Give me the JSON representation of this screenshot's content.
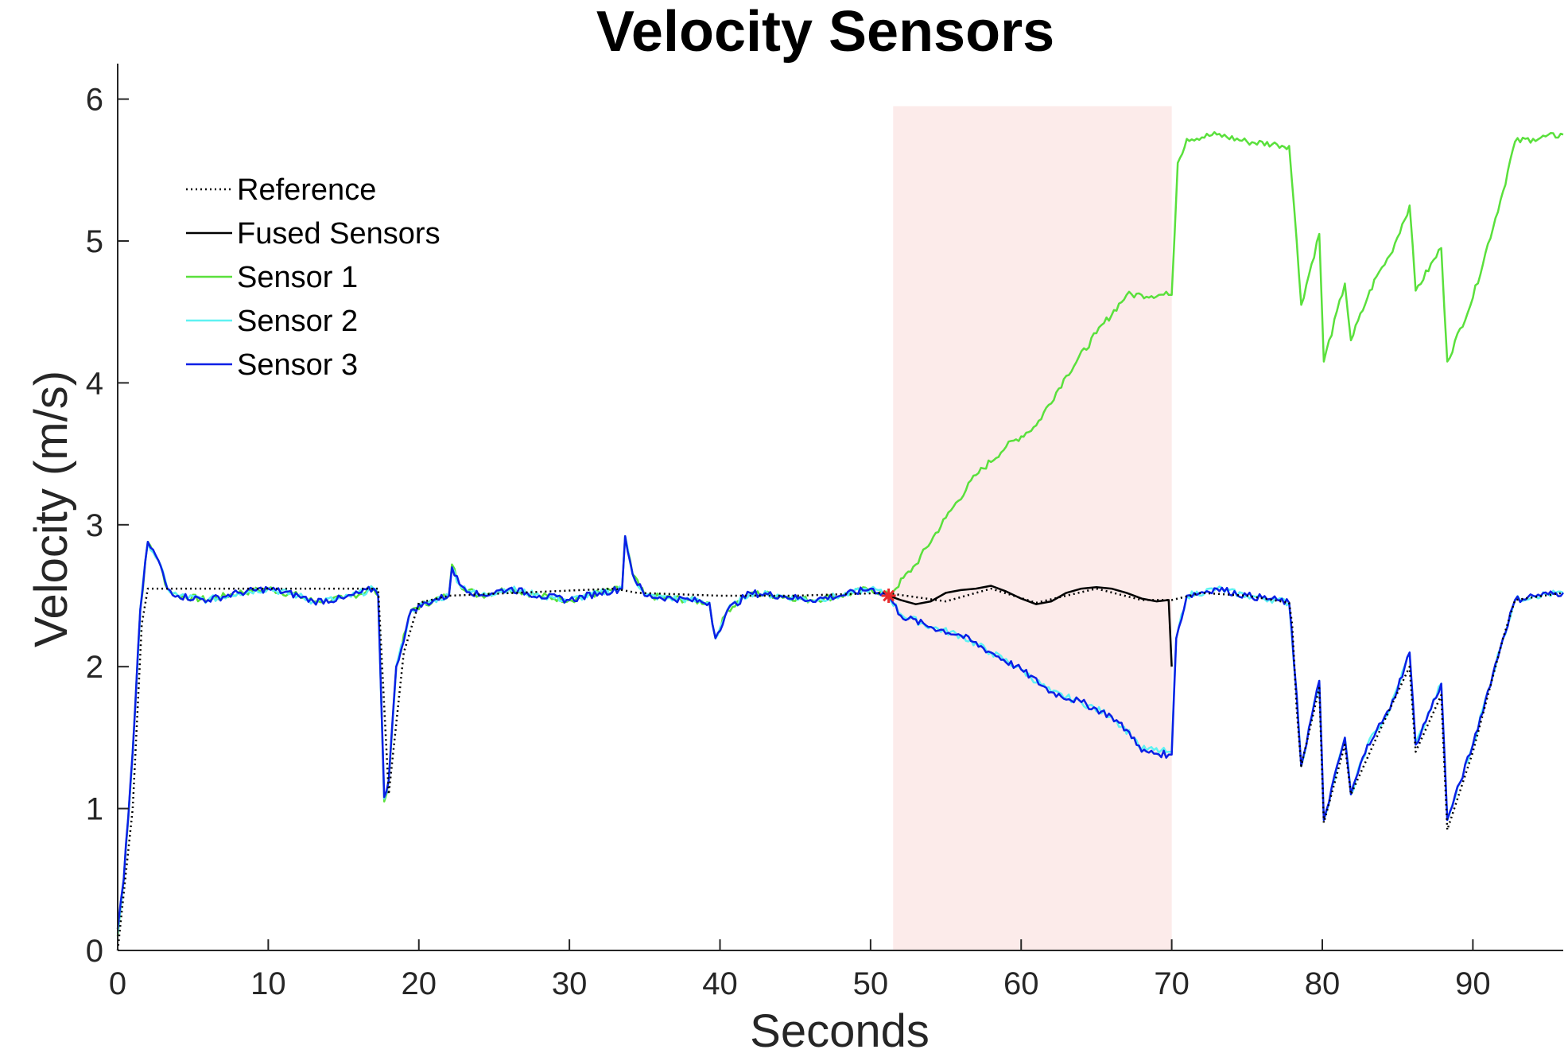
{
  "chart_data": {
    "type": "line",
    "title": "Velocity Sensors",
    "xlabel": "Seconds",
    "ylabel": "Velocity (m/s)",
    "xlim": [
      0,
      96
    ],
    "ylim": [
      0,
      6.25
    ],
    "xticks": [
      "0",
      "10",
      "20",
      "30",
      "40",
      "50",
      "60",
      "70",
      "80",
      "90"
    ],
    "yticks": [
      "0",
      "1",
      "2",
      "3",
      "4",
      "5",
      "6"
    ],
    "grid": false,
    "legend_position": "upper-left",
    "shaded_region": {
      "x_start": 51.5,
      "x_end": 70,
      "y_start": 0,
      "y_end": 5.95,
      "color": "#fcebea"
    },
    "fault_marker": {
      "x": 51.2,
      "y": 2.5,
      "color": "#e8292b",
      "symbol": "asterisk"
    },
    "colors": {
      "reference": "#000000",
      "fused": "#000000",
      "sensor1": "#5ae03c",
      "sensor2": "#5ff2f2",
      "sensor3": "#0a1fe6"
    },
    "series": [
      {
        "name": "Reference",
        "style": "dotted",
        "color": "#000000",
        "points": [
          [
            0,
            0
          ],
          [
            1,
            1.0
          ],
          [
            1.6,
            2.3
          ],
          [
            2,
            2.55
          ],
          [
            4,
            2.55
          ],
          [
            10,
            2.55
          ],
          [
            17.3,
            2.55
          ],
          [
            18,
            1.1
          ],
          [
            19,
            2.1
          ],
          [
            20,
            2.45
          ],
          [
            22,
            2.5
          ],
          [
            33,
            2.55
          ],
          [
            34.5,
            2.52
          ],
          [
            40,
            2.5
          ],
          [
            45,
            2.5
          ],
          [
            51,
            2.52
          ],
          [
            55,
            2.46
          ],
          [
            58,
            2.55
          ],
          [
            61,
            2.45
          ],
          [
            65,
            2.55
          ],
          [
            68,
            2.47
          ],
          [
            70,
            2.47
          ],
          [
            72,
            2.52
          ],
          [
            75,
            2.5
          ],
          [
            77.8,
            2.45
          ],
          [
            78,
            2.3
          ],
          [
            78.3,
            1.7
          ],
          [
            78.6,
            1.3
          ],
          [
            79.8,
            1.85
          ],
          [
            80.1,
            0.9
          ],
          [
            81.5,
            1.45
          ],
          [
            81.9,
            1.1
          ],
          [
            83.6,
            1.5
          ],
          [
            85.8,
            2.0
          ],
          [
            86.2,
            1.4
          ],
          [
            87.9,
            1.8
          ],
          [
            88.3,
            0.85
          ],
          [
            90,
            1.4
          ],
          [
            92,
            2.2
          ],
          [
            92.8,
            2.47
          ],
          [
            96,
            2.52
          ]
        ]
      },
      {
        "name": "Fused Sensors",
        "style": "solid",
        "color": "#000000",
        "points": [
          [
            51.2,
            2.5
          ],
          [
            52,
            2.47
          ],
          [
            53,
            2.44
          ],
          [
            54,
            2.46
          ],
          [
            55,
            2.52
          ],
          [
            56,
            2.54
          ],
          [
            57,
            2.55
          ],
          [
            58,
            2.57
          ],
          [
            59,
            2.53
          ],
          [
            60,
            2.48
          ],
          [
            61,
            2.44
          ],
          [
            62,
            2.46
          ],
          [
            63,
            2.52
          ],
          [
            64,
            2.55
          ],
          [
            65,
            2.56
          ],
          [
            66,
            2.55
          ],
          [
            67,
            2.52
          ],
          [
            68,
            2.48
          ],
          [
            69,
            2.46
          ],
          [
            69.8,
            2.47
          ],
          [
            70,
            2.0
          ]
        ]
      },
      {
        "name": "Sensor 1",
        "style": "solid",
        "color": "#5ae03c",
        "points": [
          [
            0,
            0.1
          ],
          [
            0.4,
            0.5
          ],
          [
            1,
            1.4
          ],
          [
            1.5,
            2.4
          ],
          [
            2,
            2.88
          ],
          [
            2.7,
            2.75
          ],
          [
            3.3,
            2.55
          ],
          [
            4,
            2.5
          ],
          [
            6,
            2.47
          ],
          [
            8,
            2.52
          ],
          [
            10,
            2.55
          ],
          [
            12,
            2.5
          ],
          [
            13,
            2.46
          ],
          [
            15,
            2.48
          ],
          [
            17,
            2.55
          ],
          [
            17.3,
            2.5
          ],
          [
            17.7,
            1.05
          ],
          [
            18,
            1.2
          ],
          [
            18.5,
            2.0
          ],
          [
            19.5,
            2.4
          ],
          [
            21,
            2.47
          ],
          [
            22,
            2.5
          ],
          [
            22.2,
            2.72
          ],
          [
            22.7,
            2.58
          ],
          [
            24,
            2.5
          ],
          [
            26,
            2.55
          ],
          [
            28,
            2.5
          ],
          [
            30,
            2.47
          ],
          [
            32,
            2.52
          ],
          [
            33.5,
            2.55
          ],
          [
            33.7,
            2.92
          ],
          [
            34.2,
            2.65
          ],
          [
            35,
            2.5
          ],
          [
            38,
            2.47
          ],
          [
            39.3,
            2.45
          ],
          [
            39.5,
            2.3
          ],
          [
            39.7,
            2.2
          ],
          [
            40.5,
            2.4
          ],
          [
            42,
            2.52
          ],
          [
            44,
            2.5
          ],
          [
            46,
            2.47
          ],
          [
            48,
            2.5
          ],
          [
            50,
            2.55
          ],
          [
            51.2,
            2.5
          ],
          [
            53,
            2.72
          ],
          [
            55,
            3.05
          ],
          [
            57,
            3.35
          ],
          [
            59,
            3.55
          ],
          [
            61,
            3.7
          ],
          [
            63,
            4.05
          ],
          [
            65,
            4.35
          ],
          [
            67,
            4.62
          ],
          [
            68,
            4.62
          ],
          [
            69.8,
            4.62
          ],
          [
            70,
            4.62
          ],
          [
            70.4,
            5.55
          ],
          [
            71,
            5.72
          ],
          [
            73,
            5.75
          ],
          [
            75,
            5.7
          ],
          [
            77,
            5.68
          ],
          [
            77.8,
            5.67
          ],
          [
            78.3,
            5.0
          ],
          [
            78.6,
            4.55
          ],
          [
            79.8,
            5.05
          ],
          [
            80.1,
            4.15
          ],
          [
            81.5,
            4.7
          ],
          [
            81.9,
            4.3
          ],
          [
            83,
            4.6
          ],
          [
            83.6,
            4.75
          ],
          [
            84.5,
            4.9
          ],
          [
            85.8,
            5.25
          ],
          [
            86.2,
            4.65
          ],
          [
            87.9,
            4.95
          ],
          [
            88.3,
            4.15
          ],
          [
            90,
            4.6
          ],
          [
            92,
            5.35
          ],
          [
            92.8,
            5.7
          ],
          [
            94,
            5.72
          ],
          [
            96,
            5.75
          ]
        ]
      },
      {
        "name": "Sensor 2",
        "style": "solid",
        "color": "#5ff2f2",
        "points": [
          [
            0,
            0.12
          ],
          [
            0.4,
            0.5
          ],
          [
            1,
            1.4
          ],
          [
            1.5,
            2.4
          ],
          [
            2,
            2.88
          ],
          [
            2.7,
            2.75
          ],
          [
            3.3,
            2.55
          ],
          [
            4,
            2.5
          ],
          [
            6,
            2.47
          ],
          [
            8,
            2.52
          ],
          [
            10,
            2.55
          ],
          [
            12,
            2.5
          ],
          [
            13,
            2.46
          ],
          [
            15,
            2.48
          ],
          [
            17,
            2.55
          ],
          [
            17.3,
            2.5
          ],
          [
            17.7,
            1.07
          ],
          [
            18,
            1.2
          ],
          [
            18.5,
            2.0
          ],
          [
            19.5,
            2.4
          ],
          [
            21,
            2.47
          ],
          [
            22,
            2.5
          ],
          [
            22.2,
            2.7
          ],
          [
            22.7,
            2.58
          ],
          [
            24,
            2.5
          ],
          [
            26,
            2.55
          ],
          [
            28,
            2.5
          ],
          [
            30,
            2.47
          ],
          [
            32,
            2.52
          ],
          [
            33.5,
            2.55
          ],
          [
            33.7,
            2.92
          ],
          [
            34.2,
            2.65
          ],
          [
            35,
            2.5
          ],
          [
            38,
            2.47
          ],
          [
            39.3,
            2.45
          ],
          [
            39.5,
            2.3
          ],
          [
            39.7,
            2.2
          ],
          [
            40.5,
            2.4
          ],
          [
            42,
            2.52
          ],
          [
            44,
            2.5
          ],
          [
            46,
            2.47
          ],
          [
            48,
            2.5
          ],
          [
            50,
            2.55
          ],
          [
            51.2,
            2.5
          ],
          [
            52,
            2.37
          ],
          [
            54,
            2.28
          ],
          [
            56,
            2.22
          ],
          [
            58,
            2.1
          ],
          [
            60,
            1.98
          ],
          [
            62,
            1.82
          ],
          [
            64,
            1.75
          ],
          [
            66,
            1.65
          ],
          [
            67.5,
            1.5
          ],
          [
            68,
            1.42
          ],
          [
            69.8,
            1.4
          ],
          [
            70,
            1.4
          ],
          [
            70.3,
            2.2
          ],
          [
            71,
            2.5
          ],
          [
            73,
            2.55
          ],
          [
            75,
            2.5
          ],
          [
            77,
            2.47
          ],
          [
            77.8,
            2.45
          ],
          [
            78.3,
            1.8
          ],
          [
            78.6,
            1.3
          ],
          [
            79.8,
            1.9
          ],
          [
            80.1,
            0.92
          ],
          [
            81.5,
            1.5
          ],
          [
            81.9,
            1.1
          ],
          [
            83,
            1.45
          ],
          [
            83.6,
            1.55
          ],
          [
            84.5,
            1.7
          ],
          [
            85.8,
            2.1
          ],
          [
            86.2,
            1.45
          ],
          [
            87.9,
            1.88
          ],
          [
            88.3,
            0.92
          ],
          [
            90,
            1.45
          ],
          [
            92,
            2.2
          ],
          [
            92.8,
            2.47
          ],
          [
            94,
            2.5
          ],
          [
            96,
            2.52
          ]
        ]
      },
      {
        "name": "Sensor 3",
        "style": "solid",
        "color": "#0a1fe6",
        "points": [
          [
            0,
            0.15
          ],
          [
            0.4,
            0.5
          ],
          [
            1,
            1.4
          ],
          [
            1.5,
            2.4
          ],
          [
            2,
            2.88
          ],
          [
            2.7,
            2.75
          ],
          [
            3.3,
            2.55
          ],
          [
            4,
            2.5
          ],
          [
            6,
            2.47
          ],
          [
            8,
            2.52
          ],
          [
            10,
            2.55
          ],
          [
            12,
            2.5
          ],
          [
            13,
            2.46
          ],
          [
            15,
            2.48
          ],
          [
            17,
            2.55
          ],
          [
            17.3,
            2.5
          ],
          [
            17.7,
            1.08
          ],
          [
            18,
            1.2
          ],
          [
            18.5,
            2.0
          ],
          [
            19.5,
            2.4
          ],
          [
            21,
            2.47
          ],
          [
            22,
            2.5
          ],
          [
            22.2,
            2.7
          ],
          [
            22.7,
            2.58
          ],
          [
            24,
            2.5
          ],
          [
            26,
            2.55
          ],
          [
            28,
            2.5
          ],
          [
            30,
            2.47
          ],
          [
            32,
            2.52
          ],
          [
            33.5,
            2.55
          ],
          [
            33.7,
            2.92
          ],
          [
            34.2,
            2.65
          ],
          [
            35,
            2.5
          ],
          [
            38,
            2.47
          ],
          [
            39.3,
            2.45
          ],
          [
            39.5,
            2.3
          ],
          [
            39.7,
            2.2
          ],
          [
            40.5,
            2.4
          ],
          [
            42,
            2.52
          ],
          [
            44,
            2.5
          ],
          [
            46,
            2.47
          ],
          [
            48,
            2.5
          ],
          [
            50,
            2.55
          ],
          [
            51.2,
            2.5
          ],
          [
            52,
            2.36
          ],
          [
            54,
            2.28
          ],
          [
            56,
            2.22
          ],
          [
            58,
            2.1
          ],
          [
            60,
            1.98
          ],
          [
            62,
            1.82
          ],
          [
            64,
            1.75
          ],
          [
            66,
            1.65
          ],
          [
            67.5,
            1.5
          ],
          [
            68,
            1.4
          ],
          [
            69.8,
            1.38
          ],
          [
            70,
            1.38
          ],
          [
            70.3,
            2.2
          ],
          [
            71,
            2.5
          ],
          [
            73,
            2.55
          ],
          [
            75,
            2.5
          ],
          [
            77,
            2.47
          ],
          [
            77.8,
            2.45
          ],
          [
            78.3,
            1.8
          ],
          [
            78.6,
            1.3
          ],
          [
            79.8,
            1.9
          ],
          [
            80.1,
            0.92
          ],
          [
            81.5,
            1.5
          ],
          [
            81.9,
            1.1
          ],
          [
            83,
            1.45
          ],
          [
            83.6,
            1.55
          ],
          [
            84.5,
            1.7
          ],
          [
            85.8,
            2.1
          ],
          [
            86.2,
            1.45
          ],
          [
            87.9,
            1.88
          ],
          [
            88.3,
            0.92
          ],
          [
            90,
            1.45
          ],
          [
            92,
            2.2
          ],
          [
            92.8,
            2.47
          ],
          [
            94,
            2.5
          ],
          [
            96,
            2.52
          ]
        ]
      }
    ]
  }
}
